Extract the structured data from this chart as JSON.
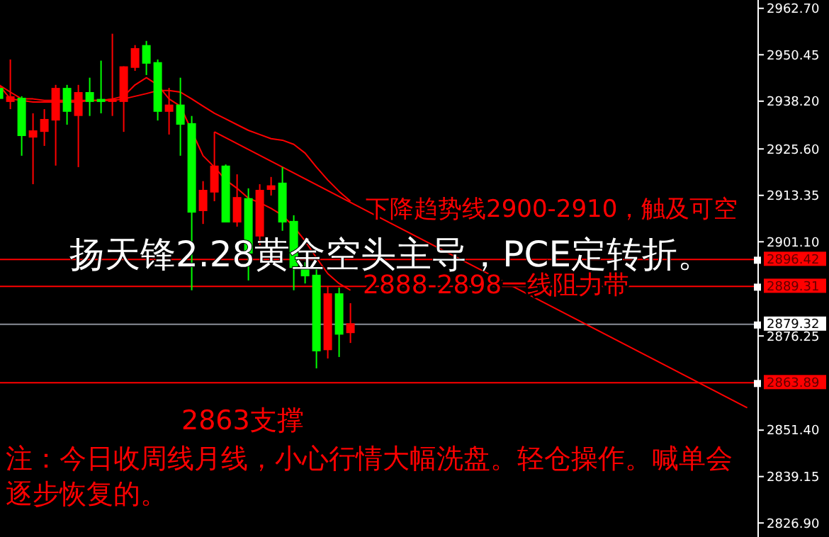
{
  "chart_data": {
    "type": "candlestick",
    "title": "扬天锋2.28黄金空头主导，PCE定转折。",
    "annotations": [
      "下降趋势线2900-2910，触及可空",
      "2888-2898一线阻力带",
      "2863支撑",
      "注：今日收周线月线，小心行情大幅洗盘。轻仓操作。喊单会逐步恢复的。"
    ],
    "categories": [
      null,
      null,
      null,
      null,
      null,
      null,
      null,
      null,
      null,
      null,
      null,
      null,
      null,
      null,
      null,
      null,
      null,
      null,
      null,
      null,
      null,
      null,
      null,
      null,
      null,
      null,
      null,
      null,
      null,
      null,
      null,
      null,
      null,
      null,
      null,
      null,
      null,
      null,
      null,
      null,
      null,
      null,
      null,
      null,
      null,
      null,
      null,
      null,
      null,
      null,
      null,
      null,
      null,
      null,
      null,
      null,
      null,
      null,
      null,
      null,
      null,
      null,
      null,
      null,
      null,
      null,
      null
    ],
    "ohlc": [
      [
        2941.7,
        2942.5,
        2938.0,
        2938.8
      ],
      [
        2938.0,
        2949.2,
        2936.1,
        2939.5
      ],
      [
        2939.1,
        2939.5,
        2923.8,
        2929.0
      ],
      [
        2928.6,
        2935.0,
        2916.3,
        2930.5
      ],
      [
        2930.1,
        2936.1,
        2926.4,
        2933.5
      ],
      [
        2933.1,
        2942.5,
        2921.2,
        2941.7
      ],
      [
        2941.7,
        2942.5,
        2932.0,
        2935.4
      ],
      [
        2934.3,
        2942.5,
        2920.8,
        2940.6
      ],
      [
        2940.6,
        2944.4,
        2934.3,
        2938.0
      ],
      [
        2938.8,
        2948.9,
        2935.0,
        2938.0
      ],
      [
        2938.0,
        2956.0,
        2934.3,
        2938.8
      ],
      [
        2938.0,
        2947.4,
        2930.1,
        2947.4
      ],
      [
        2947.0,
        2953.0,
        2946.2,
        2952.2
      ],
      [
        2953.0,
        2954.1,
        2945.1,
        2948.1
      ],
      [
        2948.5,
        2949.2,
        2933.1,
        2935.4
      ],
      [
        2935.4,
        2941.7,
        2929.4,
        2937.3
      ],
      [
        2937.3,
        2944.4,
        2923.8,
        2932.0
      ],
      [
        2932.4,
        2934.3,
        2888.3,
        2908.8
      ],
      [
        2909.2,
        2917.1,
        2905.8,
        2914.8
      ],
      [
        2914.1,
        2930.1,
        2911.8,
        2921.2
      ],
      [
        2921.2,
        2921.5,
        2906.2,
        2906.2
      ],
      [
        2906.2,
        2918.9,
        2905.1,
        2912.9
      ],
      [
        2912.6,
        2915.2,
        2890.9,
        2898.0
      ],
      [
        2902.5,
        2916.3,
        2900.2,
        2914.8
      ],
      [
        2914.8,
        2918.2,
        2913.3,
        2916.0
      ],
      [
        2916.7,
        2920.8,
        2904.0,
        2906.2
      ],
      [
        2906.6,
        2908.1,
        2888.3,
        2894.2
      ],
      [
        2894.6,
        2895.7,
        2890.1,
        2892.0
      ],
      [
        2892.4,
        2894.6,
        2867.7,
        2872.2
      ],
      [
        2872.5,
        2889.4,
        2870.3,
        2887.5
      ],
      [
        2887.5,
        2889.0,
        2870.7,
        2876.6
      ],
      [
        2877.0,
        2884.9,
        2874.4,
        2879.6
      ],
      null,
      null,
      null,
      null,
      null,
      null,
      null,
      null,
      null,
      null,
      null,
      null,
      null,
      null,
      null,
      null,
      null,
      null,
      null,
      null,
      null,
      null,
      null,
      null,
      null,
      null,
      null,
      null,
      null,
      null,
      null,
      null,
      null,
      null,
      null
    ],
    "colors": [
      "#00ff00",
      "#ff0000",
      "#00ff00",
      "#ff0000",
      "#ff0000",
      "#ff0000",
      "#00ff00",
      "#ff0000",
      "#00ff00",
      "#00ff00",
      "#ff0000",
      "#ff0000",
      "#ff0000",
      "#00ff00",
      "#00ff00",
      "#ff0000",
      "#00ff00",
      "#00ff00",
      "#ff0000",
      "#ff0000",
      "#00ff00",
      "#ff0000",
      "#00ff00",
      "#ff0000",
      "#ff0000",
      "#00ff00",
      "#00ff00",
      "#00ff00",
      "#00ff00",
      "#ff0000",
      "#00ff00",
      "#ff0000",
      null,
      null,
      null,
      null,
      null,
      null,
      null,
      null,
      null,
      null,
      null,
      null,
      null,
      null,
      null,
      null,
      null,
      null,
      null,
      null,
      null,
      null,
      null,
      null,
      null,
      null,
      null,
      null,
      null,
      null,
      null,
      null,
      null,
      null,
      null
    ],
    "series": [
      {
        "type": "line",
        "color": "#ff0000",
        "values": [
          2942.5,
          2938.8,
          2938.4,
          2938.0,
          2938.0,
          2938.0,
          2938.0,
          2938.0,
          2938.4,
          2938.4,
          2938.8,
          2939.5,
          2942.5,
          2944.4,
          2942.5,
          2938.8,
          2936.9,
          null,
          2923.8,
          2920.8,
          2917.4,
          2915.2,
          2912.6,
          2911.4,
          2909.9,
          2908.1,
          2905.1,
          2901.3,
          2896.9,
          2892.7,
          2890.1,
          2888.3,
          null,
          null,
          null,
          null,
          null,
          null,
          null,
          null,
          null,
          null,
          null,
          null,
          null,
          null,
          null,
          null,
          null,
          null,
          null,
          null,
          null,
          null,
          null,
          null,
          null,
          null,
          null,
          null,
          null,
          null,
          null,
          null,
          null,
          null,
          null
        ]
      },
      {
        "type": "line",
        "color": "#ff0000",
        "values": [
          2942.5,
          2940.6,
          2938.8,
          2938.8,
          2938.4,
          2938.4,
          2938.4,
          2938.4,
          2938.4,
          2938.4,
          2938.4,
          2938.8,
          2939.5,
          2940.2,
          2941.0,
          2941.0,
          2940.6,
          2938.8,
          2936.9,
          2935.0,
          2933.5,
          2932.0,
          2930.5,
          2929.4,
          2928.3,
          2927.9,
          2926.8,
          2924.5,
          2920.8,
          2917.4,
          2914.4,
          2911.8,
          null,
          null,
          null,
          null,
          null,
          null,
          null,
          null,
          null,
          null,
          null,
          null,
          null,
          null,
          null,
          null,
          null,
          null,
          null,
          null,
          null,
          null,
          null,
          null,
          null,
          null,
          null,
          null,
          null,
          null,
          null,
          null,
          null,
          null,
          null
        ]
      },
      {
        "type": "line",
        "color": "#ff0000",
        "values": [
          null,
          null,
          null,
          null,
          null,
          null,
          null,
          null,
          null,
          null,
          null,
          null,
          null,
          null,
          null,
          null,
          null,
          null,
          null,
          2930.1,
          null,
          null,
          null,
          null,
          null,
          null,
          null,
          null,
          null,
          null,
          null,
          null,
          null,
          null,
          null,
          null,
          null,
          null,
          null,
          null,
          null,
          null,
          null,
          null,
          null,
          null,
          null,
          null,
          null,
          null,
          null,
          null,
          null,
          null,
          null,
          null,
          null,
          null,
          null,
          null,
          null,
          null,
          null,
          null,
          null,
          null,
          2857.3
        ]
      }
    ],
    "ref_lines": [
      {
        "axis": "y",
        "value": 2896.42,
        "label": "2896.42",
        "color": "#ff0000"
      },
      {
        "axis": "y",
        "value": 2889.31,
        "label": "2889.31",
        "color": "#ff0000"
      },
      {
        "axis": "y",
        "value": 2879.32,
        "label": "2879.32",
        "color": "#8a8f99"
      },
      {
        "axis": "y",
        "value": 2863.89,
        "label": "2863.89",
        "color": "#ff0000"
      }
    ],
    "ylim": [
      2823.2,
      2964.9
    ],
    "yticks": [
      {
        "value": 2962.7,
        "label": "2962.70"
      },
      2950.45,
      {
        "value": 2938.2,
        "label": "2938.20"
      },
      {
        "value": 2925.6,
        "label": "2925.60"
      },
      2913.35,
      {
        "value": 2901.1,
        "label": "2901.10"
      },
      2876.25,
      {
        "value": 2851.4,
        "label": "2851.40"
      },
      2839.15,
      {
        "value": 2826.9,
        "label": "2826.90"
      }
    ],
    "tick_labels": "y"
  }
}
